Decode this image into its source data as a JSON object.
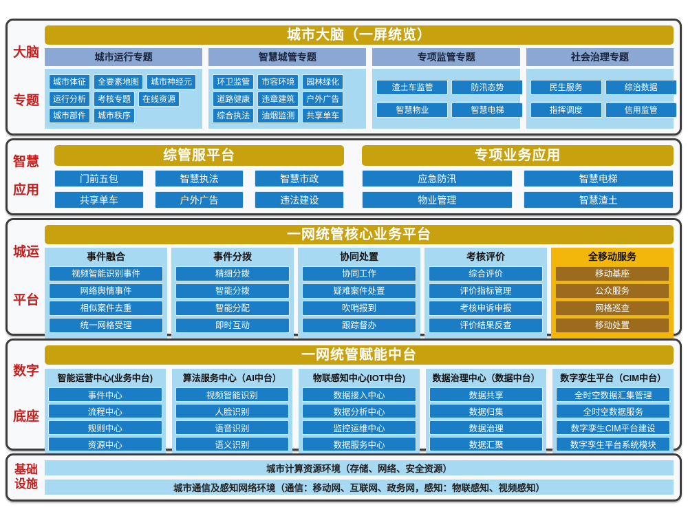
{
  "colors": {
    "gold_title": "#c7a10e",
    "gold_panel": "#f2b70a",
    "gold_button": "#9c6b1d",
    "blue_button": "#1a7dc5",
    "light_blue_panel": "#a8d9f2",
    "steel_header": "#8ba7d4",
    "red_label": "#c32020",
    "card_border": "#3c3c3c"
  },
  "brain": {
    "label_lines": [
      "大脑",
      "专题"
    ],
    "title": "城市大脑（一屏统览）",
    "groups": [
      {
        "header": "城市运行专题",
        "rows": [
          [
            "城市体征",
            "全要素地图",
            "城市神经元"
          ],
          [
            "运行分析",
            "考核专题",
            "在线资源"
          ],
          [
            "城市部件",
            "城市秩序"
          ]
        ]
      },
      {
        "header": "智慧城管专题",
        "rows": [
          [
            "环卫监管",
            "市容环境",
            "园林绿化"
          ],
          [
            "道路健康",
            "违章建筑",
            "户外广告"
          ],
          [
            "综合执法",
            "油烟监测",
            "共享单车"
          ]
        ]
      },
      {
        "header": "专项监管专题",
        "rows": [
          [
            "渣土车监管",
            "防汛态势"
          ],
          [
            "智慧物业",
            "智慧电梯"
          ]
        ]
      },
      {
        "header": "社会治理专题",
        "rows": [
          [
            "民生服务",
            "综治数据"
          ],
          [
            "指挥调度",
            "信用监管"
          ]
        ]
      }
    ]
  },
  "apps": {
    "label_lines": [
      "智慧",
      "应用"
    ],
    "groups": [
      {
        "title": "综管服平台",
        "rows": [
          [
            "门前五包",
            "智慧执法",
            "智慧市政"
          ],
          [
            "共享单车",
            "户外广告",
            "违法建设"
          ]
        ]
      },
      {
        "title": "专项业务应用",
        "rows": [
          [
            "应急防汛",
            "智慧电梯"
          ],
          [
            "物业管理",
            "智慧渣土"
          ]
        ]
      }
    ]
  },
  "core": {
    "label_lines": [
      "城运",
      "平台"
    ],
    "title": "一网统管核心业务平台",
    "dots": "......",
    "columns": [
      {
        "header": "事件融合",
        "gold": false,
        "items": [
          "视频智能识别事件",
          "网络舆情事件",
          "相似案件去重",
          "统一网格受理"
        ]
      },
      {
        "header": "事件分拨",
        "gold": false,
        "items": [
          "精细分拨",
          "智能分拨",
          "智能分配",
          "即时互动"
        ]
      },
      {
        "header": "协同处置",
        "gold": false,
        "items": [
          "协同工作",
          "疑难案件处置",
          "吹哨报到",
          "跟踪督办"
        ]
      },
      {
        "header": "考核评价",
        "gold": false,
        "items": [
          "综合评价",
          "评价指标管理",
          "考核申诉申报",
          "评价结果反查"
        ]
      },
      {
        "header": "全移动服务",
        "gold": true,
        "items": [
          "移动基座",
          "公众服务",
          "网格巡查",
          "移动处置"
        ]
      }
    ]
  },
  "middle": {
    "label_lines": [
      "数字",
      "底座"
    ],
    "title": "一网统管赋能中台",
    "columns": [
      {
        "header": "智能运营中心(业务中台)",
        "items": [
          "事件中心",
          "流程中心",
          "规则中心",
          "资源中心"
        ]
      },
      {
        "header": "算法服务中心（AI中台）",
        "items": [
          "视频智能识别",
          "人脸识别",
          "语音识别",
          "语义识别"
        ]
      },
      {
        "header": "物联感知中心(IOT中台)",
        "items": [
          "数据接入中心",
          "数据分析中心",
          "监控运维中心",
          "数据服务中心"
        ]
      },
      {
        "header": "数据治理中心（数据中台）",
        "items": [
          "数据共享",
          "数据归集",
          "数据治理",
          "数据汇聚"
        ]
      },
      {
        "header": "数字孪生平台（CIM中台）",
        "items": [
          "全时空数据汇集管理",
          "全时空数据服务",
          "数字孪生CIM平台建设",
          "数字孪生平台系统模块"
        ]
      }
    ]
  },
  "infra": {
    "label_lines": [
      "基础",
      "设施"
    ],
    "bars": [
      "城市计算资源环境（存储、网络、安全资源）",
      "城市通信及感知网络环境（通信：移动网、互联网、政务网，感知：物联感知、视频感知）"
    ]
  }
}
